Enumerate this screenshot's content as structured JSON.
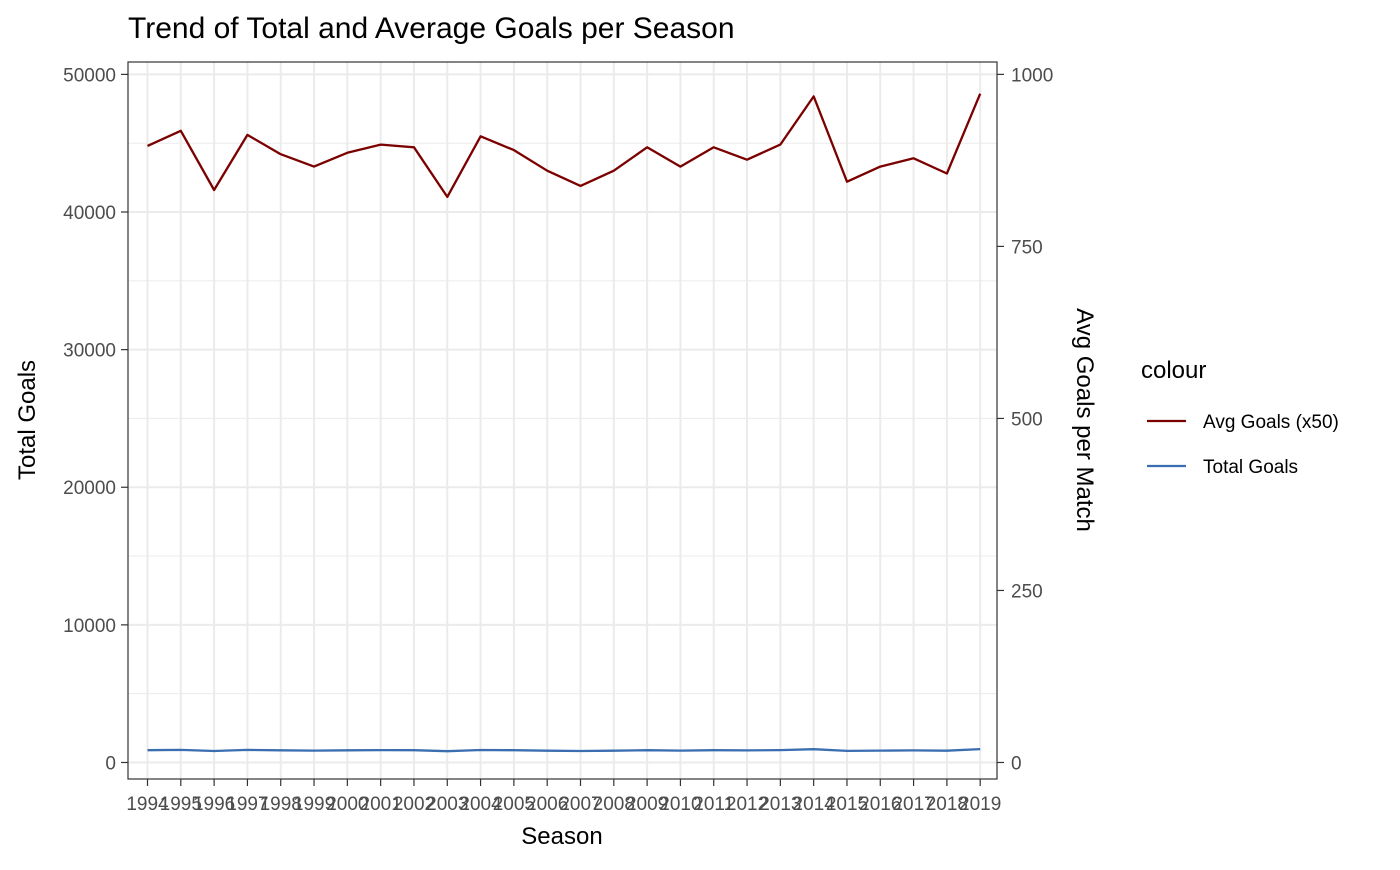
{
  "chart_data": {
    "type": "line",
    "title": "Trend of Total and Average Goals per Season",
    "xlabel": "Season",
    "ylabel": "Total Goals",
    "ylabel_right": "Avg Goals per Match",
    "x": [
      1994,
      1995,
      1996,
      1997,
      1998,
      1999,
      2000,
      2001,
      2002,
      2003,
      2004,
      2005,
      2006,
      2007,
      2008,
      2009,
      2010,
      2011,
      2012,
      2013,
      2014,
      2015,
      2016,
      2017,
      2018,
      2019
    ],
    "ylim": [
      -1200,
      50900
    ],
    "yticks": [
      0,
      10000,
      20000,
      30000,
      40000,
      50000
    ],
    "ylim_right": [
      -24,
      1018
    ],
    "yticks_right": [
      0,
      250,
      500,
      750,
      1000
    ],
    "grid": true,
    "legend": {
      "title": "colour",
      "position": "right",
      "entries": [
        "Avg Goals (x50)",
        "Total Goals"
      ]
    },
    "series": [
      {
        "name": "Avg Goals (x50)",
        "color": "#7b0000",
        "values": [
          44800,
          45900,
          41600,
          45600,
          44200,
          43300,
          44300,
          44900,
          44700,
          41100,
          45500,
          44500,
          43000,
          41900,
          43000,
          44700,
          43300,
          44700,
          43800,
          44900,
          48400,
          42200,
          43300,
          43900,
          42800,
          48600
        ]
      },
      {
        "name": "Total Goals",
        "color": "#3a6eb0",
        "values": [
          896,
          918,
          832,
          912,
          884,
          866,
          886,
          898,
          894,
          822,
          910,
          890,
          860,
          838,
          860,
          894,
          866,
          894,
          876,
          898,
          968,
          844,
          866,
          878,
          856,
          972
        ]
      }
    ]
  }
}
